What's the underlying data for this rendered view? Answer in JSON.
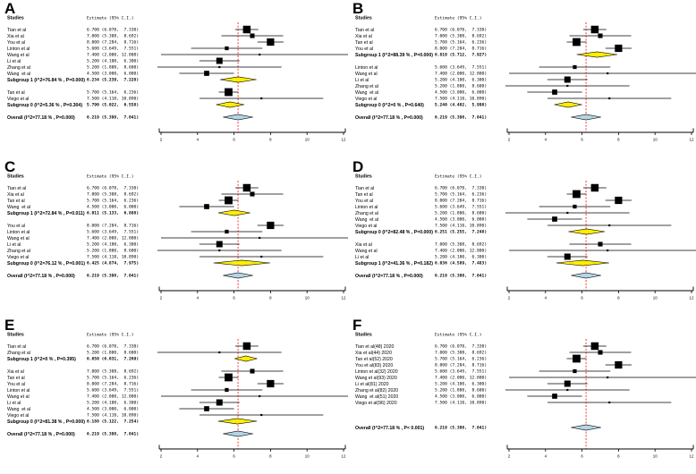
{
  "colors": {
    "reference_line": "#ff0000",
    "subgroup_diamond": "#ffee00",
    "overall_diamond": "#b5d5e5",
    "marker": "#000000",
    "axis": "#000000",
    "background": "#ffffff"
  },
  "chart_data": [
    {
      "panel": "A",
      "type": "scatter",
      "subtype": "forest",
      "col_headers": [
        "Studies",
        "Estimate (95% C.I.)"
      ],
      "xlim": [
        2,
        12
      ],
      "xticks": [
        2,
        4,
        6,
        8,
        10,
        12
      ],
      "ref_line": 6.219,
      "rows": [
        {
          "kind": "study",
          "label": "Tian et al",
          "estimate": 6.7,
          "ci": [
            6.07,
            7.33
          ],
          "text": "6.700 (6.070,  7.330)"
        },
        {
          "kind": "study",
          "label": "Xia et al",
          "estimate": 7.0,
          "ci": [
            5.308,
            8.692
          ],
          "text": "7.000 (5.308,  8.692)"
        },
        {
          "kind": "study",
          "label": "You et al",
          "estimate": 8.0,
          "ci": [
            7.284,
            8.716
          ],
          "text": "8.000 (7.284,  8.716)"
        },
        {
          "kind": "study",
          "label": "Linton et al",
          "estimate": 5.6,
          "ci": [
            3.649,
            7.551
          ],
          "text": "5.600 (3.649,  7.551)"
        },
        {
          "kind": "study",
          "label": "Wang et al",
          "estimate": 7.4,
          "ci": [
            2.0,
            12.8
          ],
          "text": "7.400 (2.000, 12.800)"
        },
        {
          "kind": "study",
          "label": "Li et al",
          "estimate": 5.2,
          "ci": [
            4.1,
            6.3
          ],
          "text": "5.200 (4.100,  6.300)"
        },
        {
          "kind": "study",
          "label": "Zhang et al",
          "estimate": 5.2,
          "ci": [
            1.8,
            8.6
          ],
          "text": "5.200 (1.800,  8.600)"
        },
        {
          "kind": "study",
          "label": "Wang  et al",
          "estimate": 4.5,
          "ci": [
            3.0,
            6.0
          ],
          "text": "4.500 (3.000,  6.000)"
        },
        {
          "kind": "subgroup",
          "label": "Subgroup 1 (I^2=76.84 % , P=0.000)",
          "estimate": 6.234,
          "ci": [
            5.239,
            7.228
          ],
          "text": "6.234 (5.239,  7.228)"
        },
        {
          "kind": "gap"
        },
        {
          "kind": "study",
          "label": "Tan et al",
          "estimate": 5.7,
          "ci": [
            5.164,
            6.236
          ],
          "text": "5.700 (5.164,  6.236)"
        },
        {
          "kind": "study",
          "label": "Viego et al",
          "estimate": 7.5,
          "ci": [
            4.11,
            10.89
          ],
          "text": "7.500 (4.110, 10.890)"
        },
        {
          "kind": "subgroup",
          "label": "Subgroup 0 (I^2=5.36 % , P=0.304)",
          "estimate": 5.79,
          "ci": [
            5.022,
            6.558
          ],
          "text": "5.790 (5.022,  6.558)"
        },
        {
          "kind": "gap"
        },
        {
          "kind": "overall",
          "label": "Overall (I^2=77.18 % , P=0.000)",
          "estimate": 6.219,
          "ci": [
            5.398,
            7.041
          ],
          "text": "6.219 (5.398,  7.041)"
        }
      ]
    },
    {
      "panel": "B",
      "type": "scatter",
      "subtype": "forest",
      "col_headers": [
        "Studies",
        "Estimate (95% C.I.)"
      ],
      "xlim": [
        2,
        12
      ],
      "xticks": [
        2,
        4,
        6,
        8,
        10,
        12
      ],
      "ref_line": 6.219,
      "rows": [
        {
          "kind": "study",
          "label": "Tian et al",
          "estimate": 6.7,
          "ci": [
            6.07,
            7.33
          ],
          "text": "6.700 (6.070,  7.330)"
        },
        {
          "kind": "study",
          "label": "Xia et al",
          "estimate": 7.0,
          "ci": [
            5.308,
            8.692
          ],
          "text": "7.000 (5.308,  8.692)"
        },
        {
          "kind": "study",
          "label": "Tan et al",
          "estimate": 5.7,
          "ci": [
            5.164,
            6.236
          ],
          "text": "5.700 (5.164,  6.236)"
        },
        {
          "kind": "study",
          "label": "You et al",
          "estimate": 8.0,
          "ci": [
            7.284,
            8.716
          ],
          "text": "8.000 (7.284,  8.716)"
        },
        {
          "kind": "subgroup",
          "label": "Subgroup 1 (I^2=88.39 % , P=0.000)",
          "estimate": 6.819,
          "ci": [
            5.712,
            7.927
          ],
          "text": "6.819 (5.712,  7.927)"
        },
        {
          "kind": "gap"
        },
        {
          "kind": "study",
          "label": "Linton et al",
          "estimate": 5.6,
          "ci": [
            3.649,
            7.551
          ],
          "text": "5.600 (3.649,  7.551)"
        },
        {
          "kind": "study",
          "label": "Wang et al",
          "estimate": 7.4,
          "ci": [
            2.0,
            12.8
          ],
          "text": "7.400 (2.000, 12.800)"
        },
        {
          "kind": "study",
          "label": "Li et al",
          "estimate": 5.2,
          "ci": [
            4.1,
            6.3
          ],
          "text": "5.200 (4.100,  6.300)"
        },
        {
          "kind": "study",
          "label": "Zhang et al",
          "estimate": 5.2,
          "ci": [
            1.8,
            8.6
          ],
          "text": "5.200 (1.800,  8.600)"
        },
        {
          "kind": "study",
          "label": "Wang  et al",
          "estimate": 4.5,
          "ci": [
            3.0,
            6.0
          ],
          "text": "4.500 (3.000,  6.000)"
        },
        {
          "kind": "study",
          "label": "Viego et al",
          "estimate": 7.5,
          "ci": [
            4.11,
            10.89
          ],
          "text": "7.500 (4.110, 10.890)"
        },
        {
          "kind": "subgroup",
          "label": "Subgroup 0 (I^2=0 % , P=0.640)",
          "estimate": 5.24,
          "ci": [
            4.482,
            5.998
          ],
          "text": "5.240 (4.482,  5.998)"
        },
        {
          "kind": "gap"
        },
        {
          "kind": "overall",
          "label": "Overall (I^2=77.18 % , P=0.000)",
          "estimate": 6.219,
          "ci": [
            5.398,
            7.041
          ],
          "text": "6.219 (5.398,  7.041)"
        }
      ]
    },
    {
      "panel": "C",
      "type": "scatter",
      "subtype": "forest",
      "col_headers": [
        "Studies",
        "Estimate (95% C.I.)"
      ],
      "xlim": [
        2,
        12
      ],
      "xticks": [
        2,
        4,
        6,
        8,
        10,
        12
      ],
      "ref_line": 6.219,
      "rows": [
        {
          "kind": "study",
          "label": "Tian et al",
          "estimate": 6.7,
          "ci": [
            6.07,
            7.33
          ],
          "text": "6.700 (6.070,  7.330)"
        },
        {
          "kind": "study",
          "label": "Xia et al",
          "estimate": 7.0,
          "ci": [
            5.308,
            8.692
          ],
          "text": "7.000 (5.308,  8.692)"
        },
        {
          "kind": "study",
          "label": "Tan et al",
          "estimate": 5.7,
          "ci": [
            5.164,
            6.236
          ],
          "text": "5.700 (5.164,  6.236)"
        },
        {
          "kind": "study",
          "label": "Wang  et al",
          "estimate": 4.5,
          "ci": [
            3.0,
            6.0
          ],
          "text": "4.500 (3.000,  6.000)"
        },
        {
          "kind": "subgroup",
          "label": "Subgroup 1 (I^2=72.84 % , P=0.011)",
          "estimate": 6.011,
          "ci": [
            5.133,
            6.888
          ],
          "text": "6.011 (5.133,  6.888)"
        },
        {
          "kind": "gap"
        },
        {
          "kind": "study",
          "label": "You et al",
          "estimate": 8.0,
          "ci": [
            7.284,
            8.716
          ],
          "text": "8.000 (7.284,  8.716)"
        },
        {
          "kind": "study",
          "label": "Linton et al",
          "estimate": 5.6,
          "ci": [
            3.649,
            7.551
          ],
          "text": "5.600 (3.649,  7.551)"
        },
        {
          "kind": "study",
          "label": "Wang et al",
          "estimate": 7.4,
          "ci": [
            2.0,
            12.8
          ],
          "text": "7.400 (2.000, 12.800)"
        },
        {
          "kind": "study",
          "label": "Li et al",
          "estimate": 5.2,
          "ci": [
            4.1,
            6.3
          ],
          "text": "5.200 (4.100,  6.300)"
        },
        {
          "kind": "study",
          "label": "Zhang et al",
          "estimate": 5.2,
          "ci": [
            1.8,
            8.6
          ],
          "text": "5.200 (1.800,  8.600)"
        },
        {
          "kind": "study",
          "label": "Viego et al",
          "estimate": 7.5,
          "ci": [
            4.11,
            10.89
          ],
          "text": "7.500 (4.110, 10.890)"
        },
        {
          "kind": "subgroup",
          "label": "Subgroup 0 (I^2=76.12 % , P=0.001)",
          "estimate": 6.425,
          "ci": [
            4.874,
            7.975
          ],
          "text": "6.425 (4.874,  7.975)"
        },
        {
          "kind": "gap"
        },
        {
          "kind": "overall",
          "label": "Overall (I^2=77.18 % , P=0.000)",
          "estimate": 6.219,
          "ci": [
            5.398,
            7.041
          ],
          "text": "6.219 (5.398,  7.041)"
        }
      ]
    },
    {
      "panel": "D",
      "type": "scatter",
      "subtype": "forest",
      "col_headers": [
        "Studies",
        "Estimate (95% C.I.)"
      ],
      "xlim": [
        2,
        12
      ],
      "xticks": [
        2,
        4,
        6,
        8,
        10,
        12
      ],
      "ref_line": 6.219,
      "rows": [
        {
          "kind": "study",
          "label": "Tian et al",
          "estimate": 6.7,
          "ci": [
            6.07,
            7.33
          ],
          "text": "6.700 (6.070,  7.330)"
        },
        {
          "kind": "study",
          "label": "Tan et al",
          "estimate": 5.7,
          "ci": [
            5.164,
            6.236
          ],
          "text": "5.700 (5.164,  6.236)"
        },
        {
          "kind": "study",
          "label": "You et al",
          "estimate": 8.0,
          "ci": [
            7.284,
            8.716
          ],
          "text": "8.000 (7.284,  8.716)"
        },
        {
          "kind": "study",
          "label": "Linton et al",
          "estimate": 5.6,
          "ci": [
            3.649,
            7.551
          ],
          "text": "5.600 (3.649,  7.551)"
        },
        {
          "kind": "study",
          "label": "Zhang et al",
          "estimate": 5.2,
          "ci": [
            1.8,
            8.6
          ],
          "text": "5.200 (1.800,  8.600)"
        },
        {
          "kind": "study",
          "label": "Wang  et al",
          "estimate": 4.5,
          "ci": [
            3.0,
            6.0
          ],
          "text": "4.500 (3.000,  6.000)"
        },
        {
          "kind": "study",
          "label": "Viego et al",
          "estimate": 7.5,
          "ci": [
            4.11,
            10.89
          ],
          "text": "7.500 (4.110, 10.890)"
        },
        {
          "kind": "subgroup",
          "label": "Subgroup 0 (I^2=82.48 % , P=0.000)",
          "estimate": 6.251,
          "ci": [
            5.255,
            7.248
          ],
          "text": "6.251 (5.255,  7.248)"
        },
        {
          "kind": "gap"
        },
        {
          "kind": "study",
          "label": "Xia et al",
          "estimate": 7.0,
          "ci": [
            5.308,
            8.692
          ],
          "text": "7.000 (5.308,  8.692)"
        },
        {
          "kind": "study",
          "label": "Wang et al",
          "estimate": 7.4,
          "ci": [
            2.0,
            12.8
          ],
          "text": "7.400 (2.000, 12.800)"
        },
        {
          "kind": "study",
          "label": "Li et al",
          "estimate": 5.2,
          "ci": [
            4.1,
            6.3
          ],
          "text": "5.200 (4.100,  6.300)"
        },
        {
          "kind": "subgroup",
          "label": "Subgroup 1 (I^2=41.36 % , P=0.182)",
          "estimate": 6.036,
          "ci": [
            4.589,
            7.483
          ],
          "text": "6.036 (4.589,  7.483)"
        },
        {
          "kind": "gap"
        },
        {
          "kind": "overall",
          "label": "Overall (I^2=77.18 % , P=0.000)",
          "estimate": 6.219,
          "ci": [
            5.398,
            7.041
          ],
          "text": "6.219 (5.398,  7.041)"
        }
      ]
    },
    {
      "panel": "E",
      "type": "scatter",
      "subtype": "forest",
      "col_headers": [
        "Studies",
        "Estimate (95% C.I.)"
      ],
      "xlim": [
        2,
        12
      ],
      "xticks": [
        2,
        4,
        6,
        8,
        10,
        12
      ],
      "ref_line": 6.219,
      "rows": [
        {
          "kind": "study",
          "label": "Tian et al",
          "estimate": 6.7,
          "ci": [
            6.07,
            7.33
          ],
          "text": "6.700 (6.070,  7.330)"
        },
        {
          "kind": "study",
          "label": "Zhang et al",
          "estimate": 5.2,
          "ci": [
            1.8,
            8.6
          ],
          "text": "5.200 (1.800,  8.600)"
        },
        {
          "kind": "subgroup",
          "label": "Subgroup 1 (I^2=0 % , P=0.395)",
          "estimate": 6.65,
          "ci": [
            6.031,
            7.269
          ],
          "text": "6.650 (6.031,  7.269)"
        },
        {
          "kind": "gap"
        },
        {
          "kind": "study",
          "label": "Xia et al",
          "estimate": 7.0,
          "ci": [
            5.308,
            8.692
          ],
          "text": "7.000 (5.308,  8.692)"
        },
        {
          "kind": "study",
          "label": "Tan et al",
          "estimate": 5.7,
          "ci": [
            5.164,
            6.236
          ],
          "text": "5.700 (5.164,  6.236)"
        },
        {
          "kind": "study",
          "label": "You et al",
          "estimate": 8.0,
          "ci": [
            7.284,
            8.716
          ],
          "text": "8.000 (7.284,  8.716)"
        },
        {
          "kind": "study",
          "label": "Linton et al",
          "estimate": 5.6,
          "ci": [
            3.649,
            7.551
          ],
          "text": "5.600 (3.649,  7.551)"
        },
        {
          "kind": "study",
          "label": "Wang et al",
          "estimate": 7.4,
          "ci": [
            2.0,
            12.8
          ],
          "text": "7.400 (2.000, 12.800)"
        },
        {
          "kind": "study",
          "label": "Li et al",
          "estimate": 5.2,
          "ci": [
            4.1,
            6.3
          ],
          "text": "5.200 (4.100,  6.300)"
        },
        {
          "kind": "study",
          "label": "Wang  et al",
          "estimate": 4.5,
          "ci": [
            3.0,
            6.0
          ],
          "text": "4.500 (3.000,  6.000)"
        },
        {
          "kind": "study",
          "label": "Viego et al",
          "estimate": 7.5,
          "ci": [
            4.11,
            10.89
          ],
          "text": "7.500 (4.110, 10.890)"
        },
        {
          "kind": "subgroup",
          "label": "Subgroup 0 (I^2=81.38 % , P=0.000)",
          "estimate": 6.188,
          "ci": [
            5.122,
            7.254
          ],
          "text": "6.188 (5.122,  7.254)"
        },
        {
          "kind": "gap"
        },
        {
          "kind": "overall",
          "label": "Overall (I^2=77.18 % , P=0.000)",
          "estimate": 6.219,
          "ci": [
            5.398,
            7.041
          ],
          "text": "6.219 (5.398,  7.041)"
        }
      ]
    },
    {
      "panel": "F",
      "type": "scatter",
      "subtype": "forest",
      "col_headers": [
        "Studies",
        "Estimate (95% C.I.)"
      ],
      "xlim": [
        2,
        12
      ],
      "xticks": [
        2,
        4,
        6,
        8,
        10,
        12
      ],
      "ref_line": 6.219,
      "rows": [
        {
          "kind": "study",
          "label": "Tian et al(48) 2020",
          "estimate": 6.7,
          "ci": [
            6.07,
            7.33
          ],
          "text": "6.700 (6.070,  7.330)"
        },
        {
          "kind": "study",
          "label": "Xia et al(44) 2020",
          "estimate": 7.0,
          "ci": [
            5.308,
            8.692
          ],
          "text": "7.000 (5.308,  8.692)"
        },
        {
          "kind": "study",
          "label": "Tan et al(52) 2020",
          "estimate": 5.7,
          "ci": [
            5.164,
            6.236
          ],
          "text": "5.700 (5.164,  6.236)"
        },
        {
          "kind": "study",
          "label": "You et al(83) 2020",
          "estimate": 8.0,
          "ci": [
            7.284,
            8.716
          ],
          "text": "8.000 (7.284,  8.716)"
        },
        {
          "kind": "study",
          "label": "Linton et al(32) 2020",
          "estimate": 5.6,
          "ci": [
            3.649,
            7.551
          ],
          "text": "5.600 (3.649,  7.551)"
        },
        {
          "kind": "study",
          "label": "Wang et al(93) 2020",
          "estimate": 7.4,
          "ci": [
            2.0,
            12.8
          ],
          "text": "7.400 (2.000, 12.800)"
        },
        {
          "kind": "study",
          "label": "Li et al(81) 2020",
          "estimate": 5.2,
          "ci": [
            4.1,
            6.3
          ],
          "text": "5.200 (4.100,  6.300)"
        },
        {
          "kind": "study",
          "label": "Zhang et al(82) 2020",
          "estimate": 5.2,
          "ci": [
            1.8,
            8.6
          ],
          "text": "5.200 (1.800,  8.600)"
        },
        {
          "kind": "study",
          "label": "Wang  et al(51) 2020",
          "estimate": 4.5,
          "ci": [
            3.0,
            6.0
          ],
          "text": "4.500 (3.000,  6.000)"
        },
        {
          "kind": "study",
          "label": "Viego et al(96) 2020",
          "estimate": 7.5,
          "ci": [
            4.11,
            10.89
          ],
          "text": "7.500 (4.110, 10.890)"
        },
        {
          "kind": "gap"
        },
        {
          "kind": "gap"
        },
        {
          "kind": "gap"
        },
        {
          "kind": "overall",
          "label": "Overall (I^2=77.18 % , P< 0.001)",
          "estimate": 6.219,
          "ci": [
            5.398,
            7.041
          ],
          "text": "6.219 (5.398,  7.041)"
        }
      ]
    }
  ]
}
